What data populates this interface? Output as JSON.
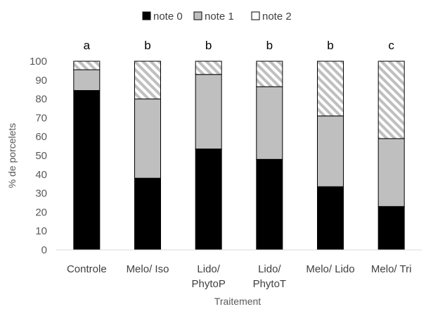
{
  "chart_data": {
    "type": "bar",
    "stacked": true,
    "categories": [
      [
        "Controle"
      ],
      [
        "Melo/ Iso"
      ],
      [
        "Lido/",
        "PhytoP"
      ],
      [
        "Lido/",
        "PhytoT"
      ],
      [
        "Melo/ Lido"
      ],
      [
        "Melo/ Tri"
      ]
    ],
    "group_letters": [
      "a",
      "b",
      "b",
      "b",
      "b",
      "c"
    ],
    "series": [
      {
        "name": "note 0",
        "values": [
          84.5,
          38,
          53.5,
          48,
          33.5,
          23
        ],
        "color": "#000000",
        "pattern": "solid"
      },
      {
        "name": "note 1",
        "values": [
          11,
          42,
          39.5,
          38.5,
          37.5,
          36
        ],
        "color": "#bfbfbf",
        "pattern": "solid"
      },
      {
        "name": "note 2",
        "values": [
          4.5,
          20,
          7,
          13.5,
          29,
          41
        ],
        "color": "#ffffff",
        "pattern": "diagonal-hatch"
      }
    ],
    "xlabel": "Traitement",
    "ylabel": "% de porcelets",
    "ylim": [
      0,
      100
    ],
    "yticks": [
      0,
      10,
      20,
      30,
      40,
      50,
      60,
      70,
      80,
      90,
      100
    ],
    "grid": false,
    "legend_position": "top"
  }
}
